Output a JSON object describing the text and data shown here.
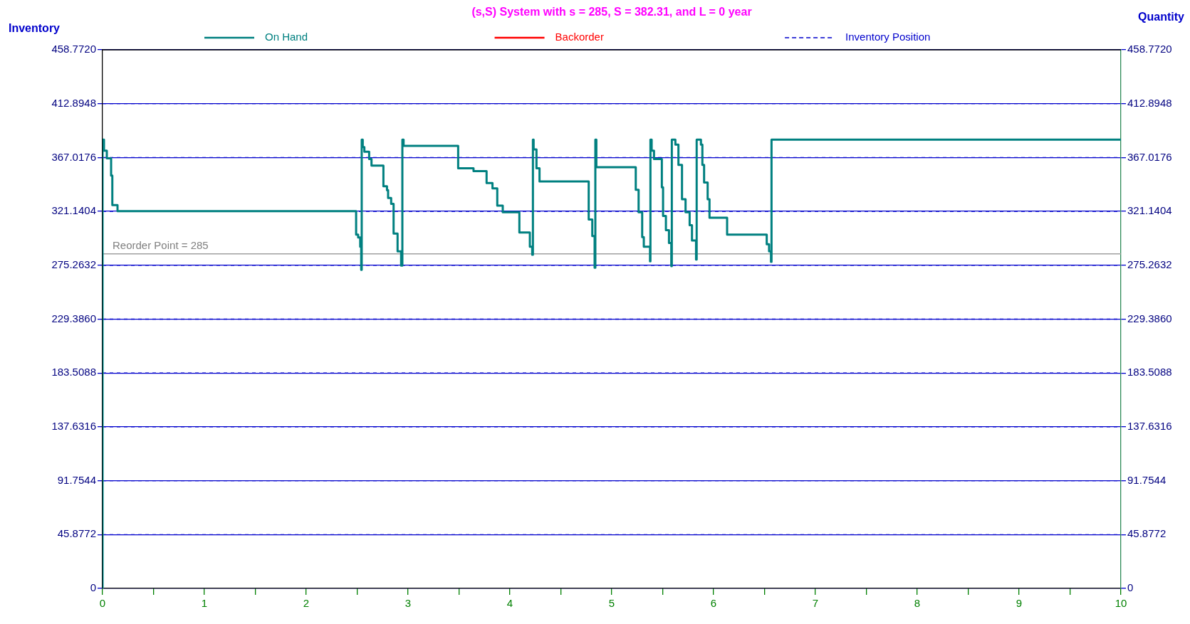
{
  "chart_data": {
    "type": "step",
    "title": "(s,S) System with s = 285, S = 382.31, and L = 0 year",
    "ylabel": "Inventory",
    "y2label": "Quantity",
    "xlim": [
      0,
      10
    ],
    "xticks": [
      0,
      {
        "value": 0.5,
        "label": null
      },
      1,
      {
        "value": 1.5,
        "label": null
      },
      2,
      {
        "value": 2.5,
        "label": null
      },
      3,
      {
        "value": 3.5,
        "label": null
      },
      4,
      {
        "value": 4.5,
        "label": null
      },
      5,
      {
        "value": 5.5,
        "label": null
      },
      6,
      {
        "value": 6.5,
        "label": null
      },
      7,
      {
        "value": 7.5,
        "label": null
      },
      8,
      {
        "value": 8.5,
        "label": null
      },
      9,
      {
        "value": 9.5,
        "label": null
      },
      10
    ],
    "ylim": [
      0,
      458.772
    ],
    "yticks": [
      0,
      {
        "value": 45.8772,
        "label": "45.8772"
      },
      {
        "value": 91.7544,
        "label": "91.7544"
      },
      {
        "value": 137.6316,
        "label": "137.6316"
      },
      {
        "value": 183.5088,
        "label": "183.5088"
      },
      {
        "value": 229.386,
        "label": "229.3860"
      },
      {
        "value": 275.2632,
        "label": "275.2632"
      },
      {
        "value": 321.1404,
        "label": "321.1404"
      },
      {
        "value": 367.0176,
        "label": "367.0176"
      },
      {
        "value": 412.8948,
        "label": "412.8948"
      },
      {
        "value": 458.772,
        "label": "458.7720"
      }
    ],
    "y2lim": [
      0,
      458.772
    ],
    "y2ticks": [
      0,
      {
        "value": 45.8772,
        "label": "45.8772"
      },
      {
        "value": 91.7544,
        "label": "91.7544"
      },
      {
        "value": 137.6316,
        "label": "137.6316"
      },
      {
        "value": 183.5088,
        "label": "183.5088"
      },
      {
        "value": 229.386,
        "label": "229.3860"
      },
      {
        "value": 275.2632,
        "label": "275.2632"
      },
      {
        "value": 321.1404,
        "label": "321.1404"
      },
      {
        "value": 367.0176,
        "label": "367.0176"
      },
      {
        "value": 412.8948,
        "label": "412.8948"
      },
      {
        "value": 458.772,
        "label": "458.7720"
      }
    ],
    "grid": "y",
    "legend": "top",
    "marker": "none",
    "ref_lines": [
      {
        "axis": "y",
        "value": 285,
        "label": "Reorder Point = 285",
        "color": "#a0a0a0"
      }
    ],
    "series": [
      {
        "name": "On Hand",
        "color": "#008080",
        "line_style": "solid",
        "x": [
          0,
          0,
          0.014,
          0.042,
          0.084,
          0.096,
          0.147,
          2.49,
          2.51,
          2.53,
          2.54,
          2.545,
          2.555,
          2.571,
          2.618,
          2.641,
          2.758,
          2.793,
          2.804,
          2.834,
          2.858,
          2.897,
          2.932,
          2.944,
          2.956,
          3.492,
          3.643,
          3.771,
          3.829,
          3.876,
          3.93,
          4.093,
          4.196,
          4.219,
          4.226,
          4.233,
          4.261,
          4.291,
          4.774,
          4.809,
          4.832,
          4.839,
          4.849,
          5.236,
          5.264,
          5.299,
          5.315,
          5.376,
          5.38,
          5.392,
          5.415,
          5.492,
          5.504,
          5.532,
          5.562,
          5.585,
          5.59,
          5.625,
          5.655,
          5.69,
          5.725,
          5.765,
          5.788,
          5.828,
          5.834,
          5.876,
          5.89,
          5.907,
          5.942,
          5.96,
          6.133,
          6.522,
          6.545,
          6.564,
          6.569,
          10
        ],
        "values": [
          0,
          382.31,
          372.9,
          366.4,
          351.7,
          326.5,
          321.4,
          301.3,
          298.9,
          291.0,
          271.3,
          382.31,
          375.9,
          371.9,
          365.8,
          360.2,
          342.6,
          339.2,
          332.5,
          327.5,
          302.3,
          287.1,
          275.0,
          382.31,
          376.9,
          357.8,
          355.4,
          345.3,
          340.7,
          326.1,
          320.5,
          303.2,
          291.0,
          284.2,
          382.31,
          373.9,
          357.8,
          346.7,
          314.3,
          300.2,
          273.2,
          382.31,
          358.8,
          339.6,
          320.5,
          299.2,
          291.0,
          278.6,
          382.31,
          372.9,
          365.8,
          341.6,
          317.3,
          305.2,
          294.3,
          274.6,
          382.31,
          378.0,
          360.8,
          331.5,
          320.5,
          309.4,
          296.3,
          280.2,
          382.31,
          378.0,
          360.8,
          345.7,
          331.5,
          315.8,
          301.3,
          293.1,
          287.1,
          278.1,
          382.31,
          382.31
        ]
      },
      {
        "name": "Backorder",
        "color": "#ff0000",
        "line_style": "solid"
      },
      {
        "name": "Inventory Position",
        "color": "#0000cc",
        "line_style": "dashed"
      }
    ]
  }
}
